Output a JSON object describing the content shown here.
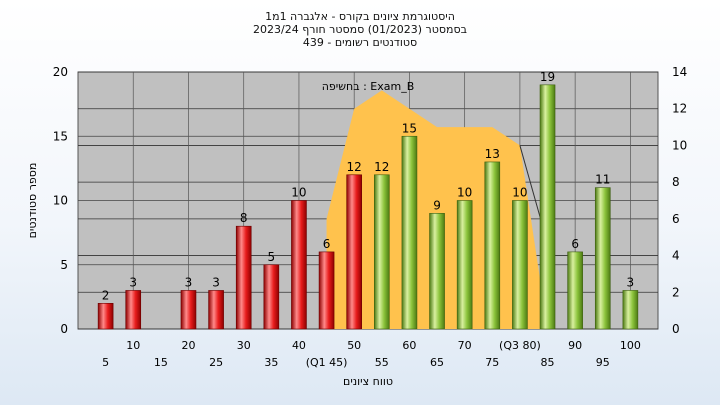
{
  "chart_data": {
    "type": "bar",
    "title_lines": [
      "היסטוגרמת ציונים בקורס - אלגברה 1מ1",
      "בסמסטר  (01/2023)  סמסטר חורף 2023/24",
      "סטודנטים רשומים - 439"
    ],
    "xlabel": "טווח ציונים",
    "ylabel": "מספר סטודנטים",
    "ylim": [
      0,
      20
    ],
    "y_ticks": [
      0,
      5,
      10,
      15,
      20
    ],
    "y2lim": [
      0,
      14
    ],
    "y2_ticks": [
      0,
      2,
      4,
      6,
      8,
      10,
      12,
      14
    ],
    "x_ticks_upper": [
      "10",
      "20",
      "30",
      "40",
      "50",
      "60",
      "70",
      "(Q3 80)",
      "90",
      "100"
    ],
    "x_ticks_lower": [
      "5",
      "15",
      "25",
      "35",
      "(Q1 45)",
      "55",
      "65",
      "75",
      "85",
      "95"
    ],
    "grid": true,
    "bars": [
      {
        "x": 5,
        "value": 2,
        "color": "red"
      },
      {
        "x": 10,
        "value": 3,
        "color": "red"
      },
      {
        "x": 20,
        "value": 3,
        "color": "red"
      },
      {
        "x": 25,
        "value": 3,
        "color": "red"
      },
      {
        "x": 30,
        "value": 8,
        "color": "red"
      },
      {
        "x": 35,
        "value": 5,
        "color": "red"
      },
      {
        "x": 40,
        "value": 10,
        "color": "red"
      },
      {
        "x": 45,
        "value": 6,
        "color": "red"
      },
      {
        "x": 50,
        "value": 12,
        "color": "red"
      },
      {
        "x": 55,
        "value": 12,
        "color": "green"
      },
      {
        "x": 60,
        "value": 15,
        "color": "green"
      },
      {
        "x": 65,
        "value": 9,
        "color": "green"
      },
      {
        "x": 70,
        "value": 10,
        "color": "green"
      },
      {
        "x": 75,
        "value": 13,
        "color": "green"
      },
      {
        "x": 80,
        "value": 10,
        "color": "green"
      },
      {
        "x": 85,
        "value": 19,
        "color": "green"
      },
      {
        "x": 90,
        "value": 6,
        "color": "green"
      },
      {
        "x": 95,
        "value": 11,
        "color": "green"
      },
      {
        "x": 100,
        "value": 3,
        "color": "green"
      }
    ],
    "overlay": {
      "label": "בחשיפה : Exam_B",
      "color": "#ffc24d",
      "points": [
        [
          45,
          6
        ],
        [
          50,
          12
        ],
        [
          55,
          13
        ],
        [
          60,
          12
        ],
        [
          65,
          11
        ],
        [
          70,
          11
        ],
        [
          75,
          11
        ],
        [
          80,
          10
        ],
        [
          85,
          0
        ]
      ]
    },
    "colors": {
      "plot_bg": "#c0c0c0",
      "red_light": "#ff8a8a",
      "red_mid": "#e81c1c",
      "red_dark": "#8e0000",
      "green_light": "#d9f0a0",
      "green_mid": "#8cc43c",
      "green_dark": "#4c7a12"
    }
  }
}
